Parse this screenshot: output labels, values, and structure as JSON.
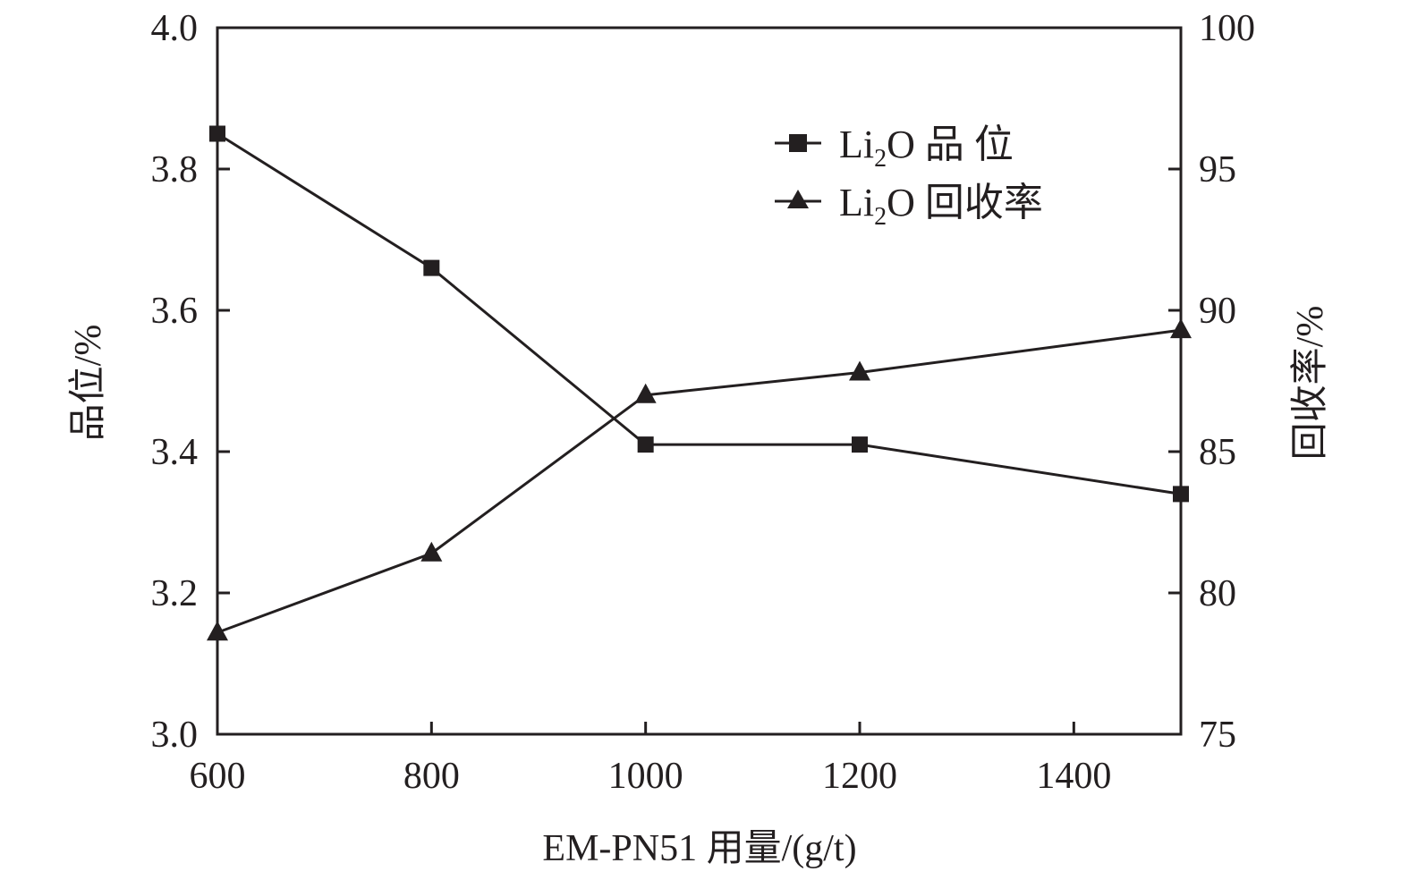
{
  "chart_data": {
    "type": "line",
    "xlabel": "EM-PN51 用量/(g/t)",
    "ylabel_left": "品位/%",
    "ylabel_right": "回收率/%",
    "xlim": [
      600,
      1500
    ],
    "ylim_left": [
      3.0,
      4.0
    ],
    "ylim_right": [
      75,
      100
    ],
    "x_ticks": [
      600,
      800,
      1000,
      1200,
      1400
    ],
    "x_tick_labels": [
      "600",
      "800",
      "1000",
      "1200",
      "1400"
    ],
    "y_left_ticks": [
      3.0,
      3.2,
      3.4,
      3.6,
      3.8,
      4.0
    ],
    "y_left_tick_labels": [
      "3.0",
      "3.2",
      "3.4",
      "3.6",
      "3.8",
      "4.0"
    ],
    "y_right_ticks": [
      75,
      80,
      85,
      90,
      95,
      100
    ],
    "y_right_tick_labels": [
      "75",
      "80",
      "85",
      "90",
      "95",
      "100"
    ],
    "legend_position": "top-right",
    "x": [
      600,
      800,
      1000,
      1200,
      1500
    ],
    "series": [
      {
        "name_main": "Li",
        "name_sub": "2",
        "name_rest": "O 品 位",
        "axis": "left",
        "marker": "square",
        "values": [
          3.85,
          3.66,
          3.41,
          3.41,
          3.34
        ]
      },
      {
        "name_main": "Li",
        "name_sub": "2",
        "name_rest": "O 回收率",
        "axis": "right",
        "marker": "triangle",
        "values": [
          78.6,
          81.4,
          87.0,
          87.8,
          89.3
        ]
      }
    ],
    "colors": {
      "line": "#231f20",
      "axes": "#231f20"
    }
  }
}
